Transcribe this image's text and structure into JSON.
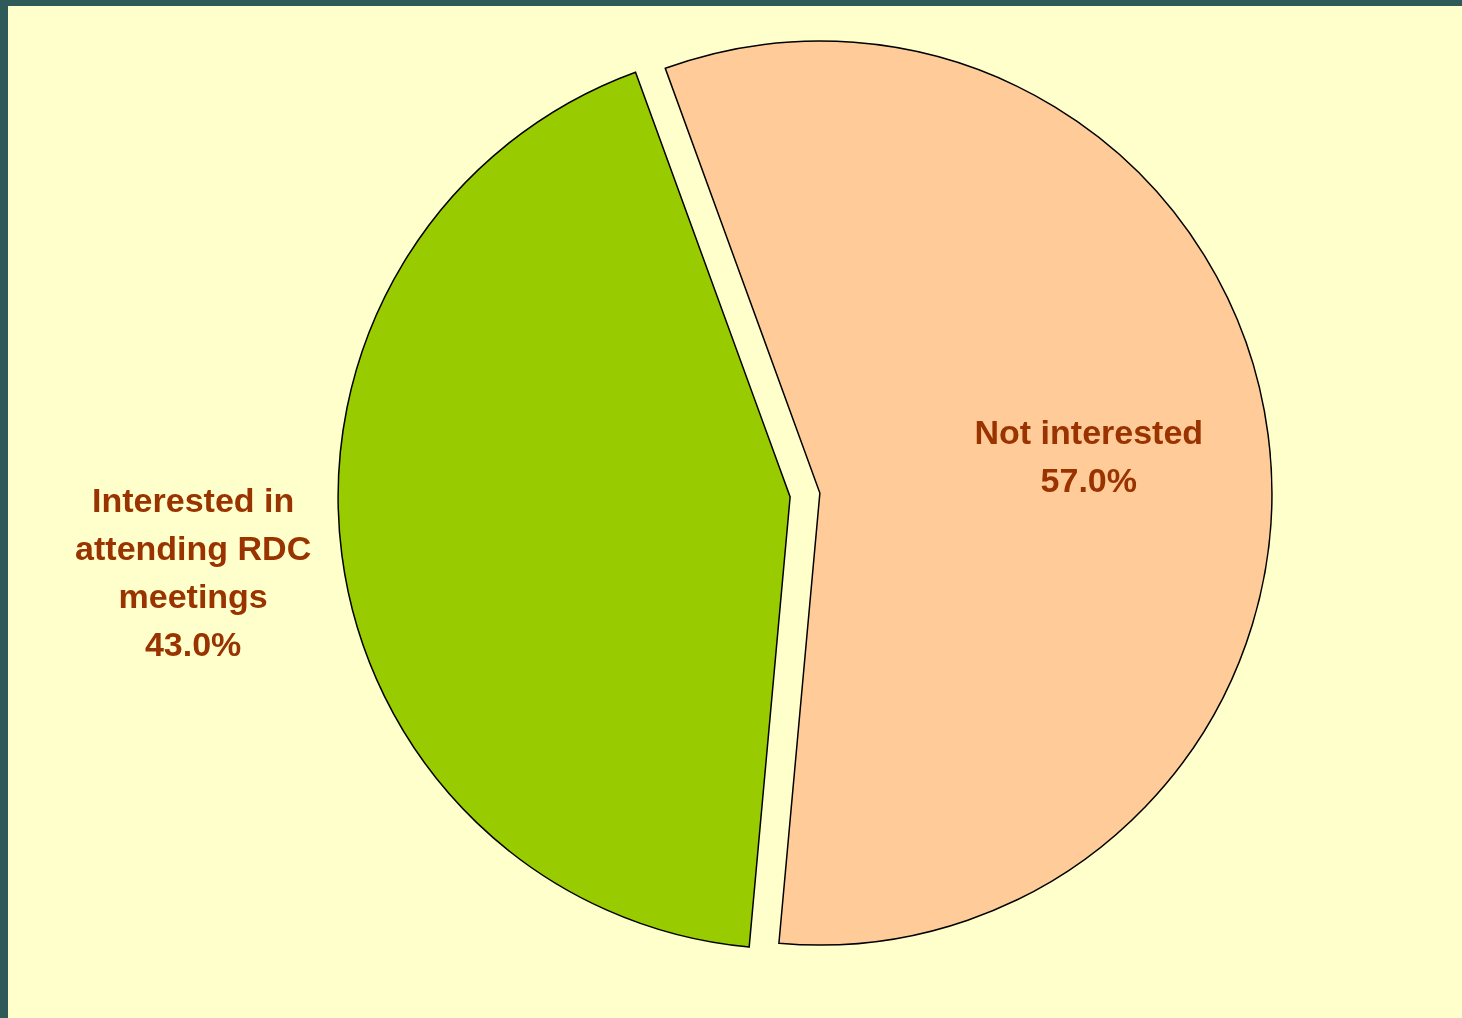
{
  "chart_data": {
    "type": "pie",
    "categories": [
      "Not interested",
      "Interested in attending RDC meetings"
    ],
    "values": [
      57.0,
      43.0
    ],
    "colors": [
      "#ffcc99",
      "#99cc00"
    ],
    "value_labels": [
      "57.0%",
      "43.0%"
    ]
  }
}
